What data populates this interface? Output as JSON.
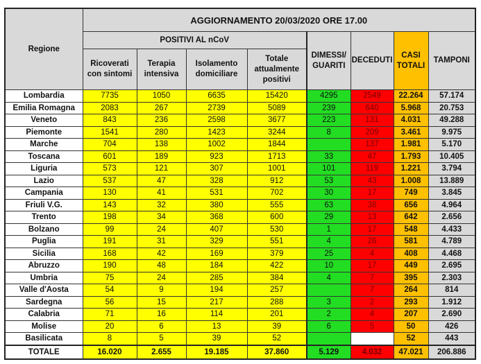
{
  "title": "AGGIORNAMENTO 20/03/2020 ORE 17.00",
  "headers": {
    "regione": "Regione",
    "positivi": "POSITIVI AL nCoV",
    "ricoverati": "Ricoverati con sintomi",
    "terapia": "Terapia intensiva",
    "isolamento": "Isolamento domiciliare",
    "totale_positivi": "Totale attualmente positivi",
    "dimessi": "DIMESSI/ GUARITI",
    "deceduti": "DECEDUTI",
    "casi": "CASI TOTALI",
    "tamponi": "TAMPONI"
  },
  "colors": {
    "positivi": "#ffff00",
    "dimessi": "#22dd22",
    "deceduti": "#ff0000",
    "casi": "#ffc000",
    "tamponi": "#d9d9d9"
  },
  "rows": [
    [
      "Lombardia",
      "7735",
      "1050",
      "6635",
      "15420",
      "4295",
      "2549",
      "22.264",
      "57.174"
    ],
    [
      "Emilia Romagna",
      "2083",
      "267",
      "2739",
      "5089",
      "239",
      "640",
      "5.968",
      "20.753"
    ],
    [
      "Veneto",
      "843",
      "236",
      "2598",
      "3677",
      "223",
      "131",
      "4.031",
      "49.288"
    ],
    [
      "Piemonte",
      "1541",
      "280",
      "1423",
      "3244",
      "8",
      "209",
      "3.461",
      "9.975"
    ],
    [
      "Marche",
      "704",
      "138",
      "1002",
      "1844",
      "",
      "137",
      "1.981",
      "5.170"
    ],
    [
      "Toscana",
      "601",
      "189",
      "923",
      "1713",
      "33",
      "47",
      "1.793",
      "10.405"
    ],
    [
      "Liguria",
      "573",
      "121",
      "307",
      "1001",
      "101",
      "119",
      "1.221",
      "3.794"
    ],
    [
      "Lazio",
      "537",
      "47",
      "328",
      "912",
      "53",
      "43",
      "1.008",
      "13.889"
    ],
    [
      "Campania",
      "130",
      "41",
      "531",
      "702",
      "30",
      "17",
      "749",
      "3.845"
    ],
    [
      "Friuli V.G.",
      "143",
      "32",
      "380",
      "555",
      "63",
      "38",
      "656",
      "4.964"
    ],
    [
      "Trento",
      "198",
      "34",
      "368",
      "600",
      "29",
      "13",
      "642",
      "2.656"
    ],
    [
      "Bolzano",
      "99",
      "24",
      "407",
      "530",
      "1",
      "17",
      "548",
      "4.433"
    ],
    [
      "Puglia",
      "191",
      "31",
      "329",
      "551",
      "4",
      "26",
      "581",
      "4.789"
    ],
    [
      "Sicilia",
      "168",
      "42",
      "169",
      "379",
      "25",
      "4",
      "408",
      "4.468"
    ],
    [
      "Abruzzo",
      "190",
      "48",
      "184",
      "422",
      "10",
      "17",
      "449",
      "2.695"
    ],
    [
      "Umbria",
      "75",
      "24",
      "285",
      "384",
      "4",
      "7",
      "395",
      "2.303"
    ],
    [
      "Valle d'Aosta",
      "54",
      "9",
      "194",
      "257",
      "",
      "7",
      "264",
      "814"
    ],
    [
      "Sardegna",
      "56",
      "15",
      "217",
      "288",
      "3",
      "2",
      "293",
      "1.912"
    ],
    [
      "Calabria",
      "71",
      "16",
      "114",
      "201",
      "2",
      "4",
      "207",
      "2.690"
    ],
    [
      "Molise",
      "20",
      "6",
      "13",
      "39",
      "6",
      "5",
      "50",
      "426"
    ],
    [
      "Basilicata",
      "8",
      "5",
      "39",
      "52",
      "",
      "",
      "52",
      "443"
    ]
  ],
  "totale": [
    "TOTALE",
    "16.020",
    "2.655",
    "19.185",
    "37.860",
    "5.129",
    "4.032",
    "47.021",
    "206.886"
  ]
}
